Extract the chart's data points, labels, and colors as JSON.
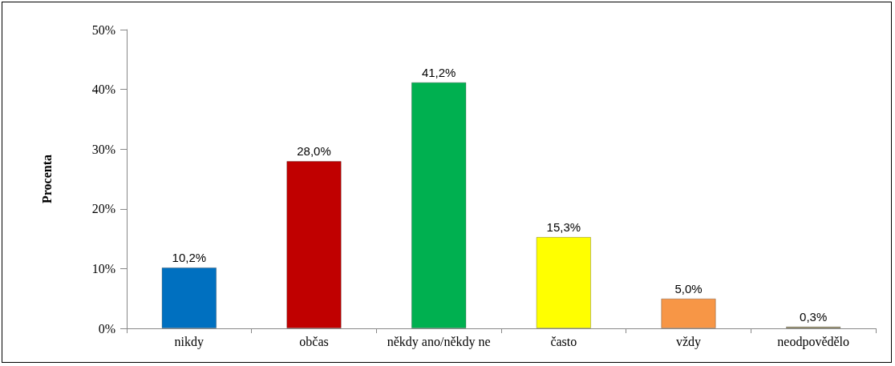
{
  "chart_data": {
    "type": "bar",
    "ylabel": "Procenta",
    "categories": [
      "nikdy",
      "občas",
      "někdy ano/někdy ne",
      "často",
      "vždy",
      "neodpovědělo"
    ],
    "values": [
      10.2,
      28.0,
      41.2,
      15.3,
      5.0,
      0.3
    ],
    "colors": [
      "#0070c0",
      "#c00000",
      "#00b050",
      "#ffff00",
      "#f79646",
      "#948a54"
    ],
    "value_labels": [
      "10,2%",
      "28,0%",
      "41,2%",
      "15,3%",
      "5,0%",
      "0,3%"
    ],
    "ylim": [
      0,
      50
    ],
    "yticks": [
      {
        "value": 0,
        "label": "0%"
      },
      {
        "value": 10,
        "label": "10%"
      },
      {
        "value": 20,
        "label": "20%"
      },
      {
        "value": 30,
        "label": "30%"
      },
      {
        "value": 40,
        "label": "40%"
      },
      {
        "value": 50,
        "label": "50%"
      }
    ],
    "grid": false
  }
}
